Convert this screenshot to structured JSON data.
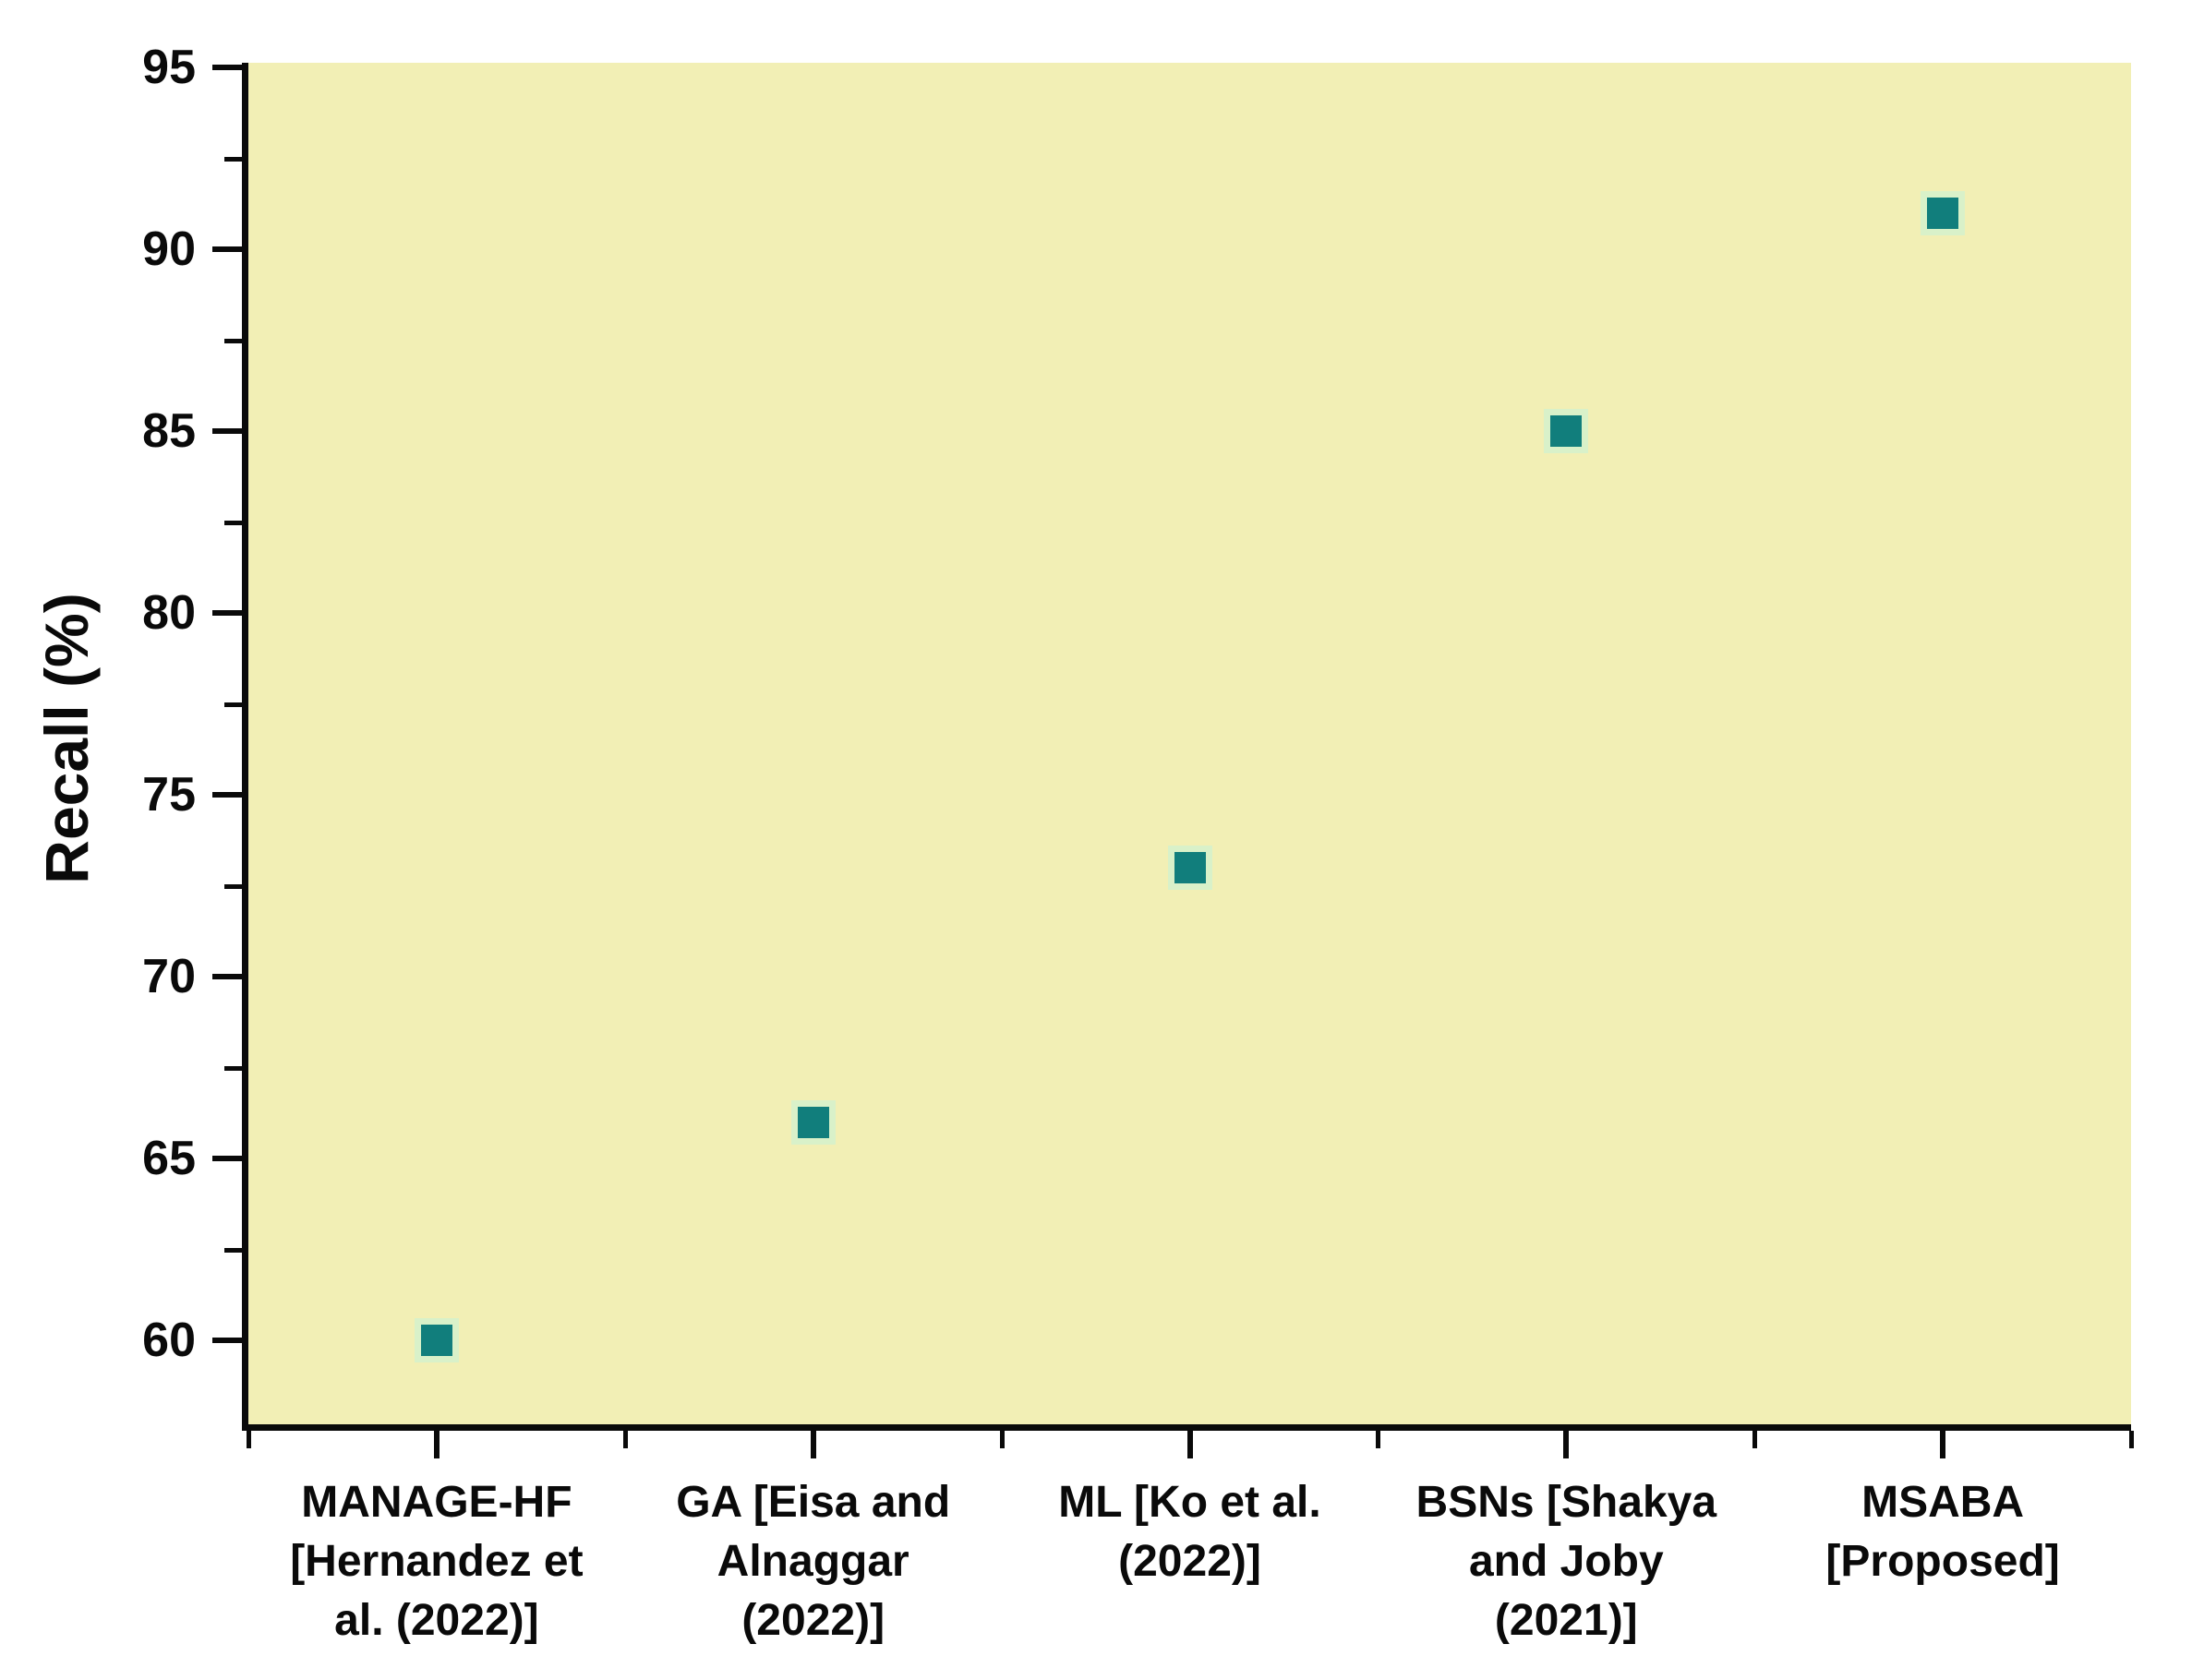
{
  "chart_data": {
    "type": "scatter",
    "title": "",
    "xlabel": "",
    "ylabel": "Recall (%)",
    "categories": [
      "MANAGE-HF [Hernandez et al. (2022)]",
      "GA [Eisa and Alnaggar (2022)]",
      "ML [Ko et al. (2022)]",
      "BSNs [Shakya and Joby (2021)]",
      "MSABA [Proposed]"
    ],
    "category_display_lines": [
      [
        "MANAGE-HF",
        "[Hernandez et",
        "al. (2022)]"
      ],
      [
        "GA [Eisa and",
        "Alnaggar",
        "(2022)]"
      ],
      [
        "ML [Ko et al.",
        "(2022)]"
      ],
      [
        "BSNs [Shakya",
        "and Joby",
        "(2021)]"
      ],
      [
        "MSABA",
        "[Proposed]"
      ]
    ],
    "series": [
      {
        "name": "Recall",
        "values": [
          60,
          66,
          73,
          85,
          91
        ]
      }
    ],
    "y_major_ticks": [
      60,
      65,
      70,
      75,
      80,
      85,
      90,
      95
    ],
    "y_minor_ticks": [
      57.5,
      62.5,
      67.5,
      72.5,
      77.5,
      82.5,
      87.5,
      92.5
    ],
    "ylim": [
      57.7,
      95.13
    ],
    "grid": "off",
    "legend": "none",
    "colors": {
      "plot_background": "#F2EFB5",
      "marker_fill": "#117E7C",
      "marker_edge": "#D9F1C9",
      "axis": "#0a0a0a",
      "text": "#0a0a0a",
      "page_background": "#ffffff"
    },
    "marker_shape": "square"
  }
}
